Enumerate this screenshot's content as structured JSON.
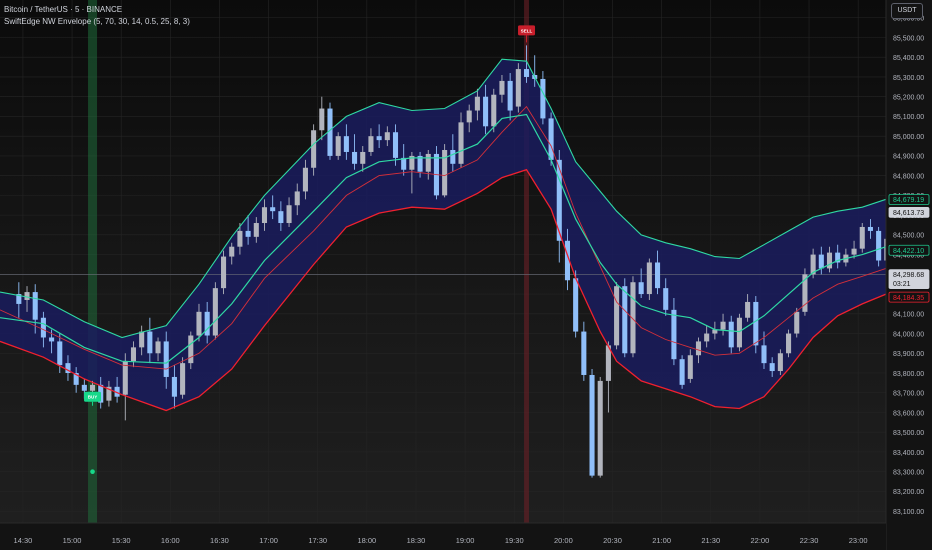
{
  "legend": {
    "symbol": "Bitcoin / TetherUS · 5 · BINANCE",
    "indicator": "SwiftEdge NW Envelope (5, 70, 30, 14, 0.5, 25, 8, 3)"
  },
  "currency_button": "USDT",
  "chart_data": {
    "type": "candlestick",
    "title": "",
    "y_ticks": [
      83100,
      83200,
      83300,
      83400,
      83500,
      83600,
      83700,
      83800,
      83900,
      84000,
      84100,
      84200,
      84300,
      84400,
      84500,
      84600,
      84700,
      84800,
      84900,
      85000,
      85100,
      85200,
      85300,
      85400,
      85500,
      85600
    ],
    "y_tick_labels": [
      "83,100.00",
      "83,200.00",
      "83,300.00",
      "83,400.00",
      "83,500.00",
      "83,600.00",
      "83,700.00",
      "83,800.00",
      "83,900.00",
      "84,000.00",
      "84,100.00",
      "84,200.00",
      "84,300.00",
      "84,400.00",
      "84,500.00",
      "84,600.00",
      "84,700.00",
      "84,800.00",
      "84,900.00",
      "85,000.00",
      "85,100.00",
      "85,200.00",
      "85,300.00",
      "85,400.00",
      "85,500.00",
      "85,600.00"
    ],
    "ylim": [
      83040,
      85690
    ],
    "x_ticks": [
      "14:30",
      "15:00",
      "15:30",
      "16:00",
      "16:30",
      "17:00",
      "17:30",
      "18:00",
      "18:30",
      "19:00",
      "19:30",
      "20:00",
      "20:30",
      "21:00",
      "21:30",
      "22:00",
      "22:30",
      "23:00"
    ],
    "x_tick_positions": [
      0.5,
      6.5,
      12.5,
      18.5,
      24.5,
      30.5,
      36.5,
      42.5,
      48.5,
      54.5,
      60.5,
      66.5,
      72.5,
      78.5,
      84.5,
      90.5,
      96.5,
      102.5
    ],
    "x_range": [
      -2.3,
      105.9
    ],
    "candles": [
      {
        "o": 84200,
        "h": 84260,
        "c": 84150,
        "l": 84080
      },
      {
        "o": 84170,
        "h": 84240,
        "c": 84210,
        "l": 84110
      },
      {
        "o": 84210,
        "h": 84250,
        "c": 84070,
        "l": 84000
      },
      {
        "o": 84080,
        "h": 84110,
        "c": 83980,
        "l": 83930
      },
      {
        "o": 83980,
        "h": 84020,
        "c": 83960,
        "l": 83900
      },
      {
        "o": 83960,
        "h": 84000,
        "c": 83840,
        "l": 83800
      },
      {
        "o": 83850,
        "h": 83890,
        "c": 83800,
        "l": 83760
      },
      {
        "o": 83800,
        "h": 83830,
        "c": 83740,
        "l": 83700
      },
      {
        "o": 83740,
        "h": 83770,
        "c": 83710,
        "l": 83670
      },
      {
        "o": 83710,
        "h": 83760,
        "c": 83740,
        "l": 83690
      },
      {
        "o": 83740,
        "h": 83780,
        "c": 83650,
        "l": 83620
      },
      {
        "o": 83660,
        "h": 83760,
        "c": 83730,
        "l": 83630
      },
      {
        "o": 83730,
        "h": 83780,
        "c": 83680,
        "l": 83650
      },
      {
        "o": 83690,
        "h": 83900,
        "c": 83860,
        "l": 83560
      },
      {
        "o": 83860,
        "h": 83960,
        "c": 83930,
        "l": 83830
      },
      {
        "o": 83930,
        "h": 84040,
        "c": 84010,
        "l": 83890
      },
      {
        "o": 84010,
        "h": 84080,
        "c": 83900,
        "l": 83850
      },
      {
        "o": 83900,
        "h": 83980,
        "c": 83960,
        "l": 83860
      },
      {
        "o": 83960,
        "h": 84010,
        "c": 83780,
        "l": 83720
      },
      {
        "o": 83780,
        "h": 83840,
        "c": 83680,
        "l": 83620
      },
      {
        "o": 83690,
        "h": 83880,
        "c": 83850,
        "l": 83670
      },
      {
        "o": 83850,
        "h": 84010,
        "c": 83990,
        "l": 83820
      },
      {
        "o": 83990,
        "h": 84150,
        "c": 84110,
        "l": 83960
      },
      {
        "o": 84110,
        "h": 84160,
        "c": 83990,
        "l": 83950
      },
      {
        "o": 83990,
        "h": 84260,
        "c": 84230,
        "l": 83970
      },
      {
        "o": 84230,
        "h": 84420,
        "c": 84390,
        "l": 84200
      },
      {
        "o": 84390,
        "h": 84460,
        "c": 84440,
        "l": 84350
      },
      {
        "o": 84440,
        "h": 84560,
        "c": 84520,
        "l": 84400
      },
      {
        "o": 84520,
        "h": 84600,
        "c": 84490,
        "l": 84450
      },
      {
        "o": 84490,
        "h": 84590,
        "c": 84560,
        "l": 84460
      },
      {
        "o": 84560,
        "h": 84680,
        "c": 84640,
        "l": 84520
      },
      {
        "o": 84640,
        "h": 84700,
        "c": 84620,
        "l": 84580
      },
      {
        "o": 84620,
        "h": 84670,
        "c": 84560,
        "l": 84520
      },
      {
        "o": 84560,
        "h": 84690,
        "c": 84650,
        "l": 84540
      },
      {
        "o": 84650,
        "h": 84760,
        "c": 84720,
        "l": 84600
      },
      {
        "o": 84720,
        "h": 84880,
        "c": 84840,
        "l": 84680
      },
      {
        "o": 84840,
        "h": 85060,
        "c": 85030,
        "l": 84800
      },
      {
        "o": 85030,
        "h": 85200,
        "c": 85140,
        "l": 84980
      },
      {
        "o": 85140,
        "h": 85170,
        "c": 84900,
        "l": 84880
      },
      {
        "o": 84900,
        "h": 85020,
        "c": 85000,
        "l": 84880
      },
      {
        "o": 85000,
        "h": 85060,
        "c": 84920,
        "l": 84880
      },
      {
        "o": 84920,
        "h": 85010,
        "c": 84860,
        "l": 84830
      },
      {
        "o": 84860,
        "h": 84950,
        "c": 84920,
        "l": 84820
      },
      {
        "o": 84920,
        "h": 85040,
        "c": 85000,
        "l": 84900
      },
      {
        "o": 85000,
        "h": 85060,
        "c": 84980,
        "l": 84940
      },
      {
        "o": 84980,
        "h": 85050,
        "c": 85020,
        "l": 84950
      },
      {
        "o": 85020,
        "h": 85060,
        "c": 84890,
        "l": 84850
      },
      {
        "o": 84890,
        "h": 84960,
        "c": 84830,
        "l": 84800
      },
      {
        "o": 84830,
        "h": 84920,
        "c": 84900,
        "l": 84710
      },
      {
        "o": 84900,
        "h": 84920,
        "c": 84820,
        "l": 84790
      },
      {
        "o": 84820,
        "h": 84930,
        "c": 84910,
        "l": 84780
      },
      {
        "o": 84910,
        "h": 84950,
        "c": 84700,
        "l": 84680
      },
      {
        "o": 84700,
        "h": 84960,
        "c": 84930,
        "l": 84690
      },
      {
        "o": 84930,
        "h": 85010,
        "c": 84860,
        "l": 84820
      },
      {
        "o": 84860,
        "h": 85120,
        "c": 85070,
        "l": 84840
      },
      {
        "o": 85070,
        "h": 85160,
        "c": 85130,
        "l": 85020
      },
      {
        "o": 85130,
        "h": 85240,
        "c": 85200,
        "l": 85080
      },
      {
        "o": 85200,
        "h": 85260,
        "c": 85050,
        "l": 85010
      },
      {
        "o": 85050,
        "h": 85240,
        "c": 85210,
        "l": 85020
      },
      {
        "o": 85210,
        "h": 85310,
        "c": 85280,
        "l": 85170
      },
      {
        "o": 85280,
        "h": 85320,
        "c": 85130,
        "l": 85080
      },
      {
        "o": 85150,
        "h": 85370,
        "c": 85340,
        "l": 85120
      },
      {
        "o": 85340,
        "h": 85460,
        "c": 85300,
        "l": 85270
      },
      {
        "o": 85310,
        "h": 85410,
        "c": 85290,
        "l": 85250
      },
      {
        "o": 85290,
        "h": 85330,
        "c": 85090,
        "l": 85060
      },
      {
        "o": 85090,
        "h": 85120,
        "c": 84880,
        "l": 84850
      },
      {
        "o": 84880,
        "h": 84930,
        "c": 84470,
        "l": 84360
      },
      {
        "o": 84470,
        "h": 84530,
        "c": 84270,
        "l": 84220
      },
      {
        "o": 84280,
        "h": 84320,
        "c": 84010,
        "l": 83980
      },
      {
        "o": 84010,
        "h": 84060,
        "c": 83790,
        "l": 83760
      },
      {
        "o": 83790,
        "h": 83820,
        "c": 83280,
        "l": 83270
      },
      {
        "o": 83280,
        "h": 83780,
        "c": 83760,
        "l": 83270
      },
      {
        "o": 83760,
        "h": 83960,
        "c": 83940,
        "l": 83600
      },
      {
        "o": 83940,
        "h": 84260,
        "c": 84240,
        "l": 83920
      },
      {
        "o": 84240,
        "h": 84280,
        "c": 83900,
        "l": 83880
      },
      {
        "o": 83900,
        "h": 84290,
        "c": 84260,
        "l": 83880
      },
      {
        "o": 84260,
        "h": 84330,
        "c": 84200,
        "l": 84180
      },
      {
        "o": 84200,
        "h": 84380,
        "c": 84360,
        "l": 84170
      },
      {
        "o": 84360,
        "h": 84420,
        "c": 84230,
        "l": 84200
      },
      {
        "o": 84230,
        "h": 84280,
        "c": 84120,
        "l": 84090
      },
      {
        "o": 84120,
        "h": 84180,
        "c": 83870,
        "l": 83840
      },
      {
        "o": 83870,
        "h": 83890,
        "c": 83740,
        "l": 83720
      },
      {
        "o": 83770,
        "h": 83920,
        "c": 83890,
        "l": 83750
      },
      {
        "o": 83890,
        "h": 83980,
        "c": 83960,
        "l": 83850
      },
      {
        "o": 83960,
        "h": 84040,
        "c": 84000,
        "l": 83930
      },
      {
        "o": 84000,
        "h": 84060,
        "c": 84020,
        "l": 83970
      },
      {
        "o": 84020,
        "h": 84100,
        "c": 84060,
        "l": 83990
      },
      {
        "o": 84060,
        "h": 84090,
        "c": 83930,
        "l": 83900
      },
      {
        "o": 83930,
        "h": 84100,
        "c": 84080,
        "l": 83910
      },
      {
        "o": 84080,
        "h": 84200,
        "c": 84160,
        "l": 84060
      },
      {
        "o": 84160,
        "h": 84190,
        "c": 83940,
        "l": 83900
      },
      {
        "o": 83940,
        "h": 84010,
        "c": 83850,
        "l": 83820
      },
      {
        "o": 83850,
        "h": 83880,
        "c": 83810,
        "l": 83780
      },
      {
        "o": 83810,
        "h": 83920,
        "c": 83900,
        "l": 83790
      },
      {
        "o": 83900,
        "h": 84020,
        "c": 84000,
        "l": 83880
      },
      {
        "o": 84000,
        "h": 84130,
        "c": 84110,
        "l": 83980
      },
      {
        "o": 84110,
        "h": 84330,
        "c": 84300,
        "l": 84090
      },
      {
        "o": 84300,
        "h": 84430,
        "c": 84400,
        "l": 84280
      },
      {
        "o": 84400,
        "h": 84440,
        "c": 84330,
        "l": 84300
      },
      {
        "o": 84330,
        "h": 84440,
        "c": 84410,
        "l": 84310
      },
      {
        "o": 84410,
        "h": 84450,
        "c": 84360,
        "l": 84330
      },
      {
        "o": 84360,
        "h": 84430,
        "c": 84400,
        "l": 84340
      },
      {
        "o": 84400,
        "h": 84470,
        "c": 84430,
        "l": 84380
      },
      {
        "o": 84430,
        "h": 84560,
        "c": 84540,
        "l": 84410
      },
      {
        "o": 84540,
        "h": 84580,
        "c": 84520,
        "l": 84480
      },
      {
        "o": 84520,
        "h": 84540,
        "c": 84370,
        "l": 84340
      },
      {
        "o": 84370,
        "h": 84500,
        "c": 84480,
        "l": 84350
      },
      {
        "o": 84480,
        "h": 84500,
        "c": 84420,
        "l": 84390
      },
      {
        "o": 84420,
        "h": 84440,
        "c": 84330,
        "l": 84300
      },
      {
        "o": 84330,
        "h": 84360,
        "c": 84290,
        "l": 84270
      },
      {
        "o": 84290,
        "h": 84420,
        "c": 84400,
        "l": 84280
      },
      {
        "o": 84400,
        "h": 84440,
        "c": 84350,
        "l": 84330
      },
      {
        "o": 84350,
        "h": 84420,
        "c": 84400,
        "l": 84340
      },
      {
        "o": 84400,
        "h": 84470,
        "c": 84420,
        "l": 84380
      },
      {
        "o": 84410,
        "h": 84640,
        "c": 84613.73,
        "l": 84390
      }
    ],
    "envelope_upper_pts": [
      [
        -2.3,
        84210
      ],
      [
        3,
        84170
      ],
      [
        8,
        84060
      ],
      [
        12.6,
        83980
      ],
      [
        18,
        84040
      ],
      [
        22,
        84250
      ],
      [
        26,
        84490
      ],
      [
        30,
        84700
      ],
      [
        36,
        84960
      ],
      [
        40,
        85100
      ],
      [
        44,
        85170
      ],
      [
        48,
        85130
      ],
      [
        52,
        85140
      ],
      [
        56,
        85230
      ],
      [
        59,
        85390
      ],
      [
        62,
        85380
      ],
      [
        65,
        85140
      ],
      [
        68,
        84870
      ],
      [
        71,
        84720
      ],
      [
        73,
        84620
      ],
      [
        76,
        84500
      ],
      [
        79,
        84460
      ],
      [
        82,
        84430
      ],
      [
        85,
        84390
      ],
      [
        88,
        84380
      ],
      [
        91,
        84450
      ],
      [
        94,
        84520
      ],
      [
        97,
        84590
      ],
      [
        100,
        84620
      ],
      [
        103,
        84640
      ],
      [
        105.9,
        84680
      ]
    ],
    "envelope_lower_pts": [
      [
        -2.3,
        83960
      ],
      [
        3,
        83880
      ],
      [
        8,
        83770
      ],
      [
        12.6,
        83690
      ],
      [
        18,
        83610
      ],
      [
        22,
        83680
      ],
      [
        26,
        83820
      ],
      [
        30,
        84040
      ],
      [
        36,
        84350
      ],
      [
        40,
        84540
      ],
      [
        44,
        84610
      ],
      [
        48,
        84640
      ],
      [
        52,
        84630
      ],
      [
        56,
        84710
      ],
      [
        59,
        84790
      ],
      [
        62,
        84830
      ],
      [
        65,
        84630
      ],
      [
        68,
        84280
      ],
      [
        71,
        84010
      ],
      [
        73,
        83860
      ],
      [
        76,
        83760
      ],
      [
        79,
        83720
      ],
      [
        82,
        83680
      ],
      [
        85,
        83630
      ],
      [
        88,
        83620
      ],
      [
        91,
        83680
      ],
      [
        94,
        83820
      ],
      [
        97,
        83980
      ],
      [
        100,
        84090
      ],
      [
        103,
        84150
      ],
      [
        105.9,
        84200
      ]
    ],
    "mid_green_pts": [
      [
        -2.3,
        84080
      ],
      [
        3,
        84050
      ],
      [
        8,
        83930
      ],
      [
        12.6,
        83860
      ],
      [
        18,
        83850
      ],
      [
        22,
        83980
      ],
      [
        26,
        84150
      ],
      [
        30,
        84370
      ],
      [
        36,
        84620
      ],
      [
        40,
        84790
      ],
      [
        44,
        84870
      ],
      [
        48,
        84890
      ],
      [
        52,
        84890
      ],
      [
        56,
        84960
      ],
      [
        59,
        85090
      ],
      [
        62,
        85110
      ],
      [
        65,
        84880
      ],
      [
        68,
        84580
      ],
      [
        71,
        84360
      ],
      [
        73,
        84250
      ],
      [
        76,
        84140
      ],
      [
        79,
        84100
      ],
      [
        82,
        84080
      ],
      [
        85,
        84020
      ],
      [
        88,
        84010
      ],
      [
        91,
        84090
      ],
      [
        94,
        84200
      ],
      [
        97,
        84310
      ],
      [
        100,
        84370
      ],
      [
        103,
        84400
      ],
      [
        105.9,
        84440
      ]
    ],
    "mid_red_pts": [
      [
        -2.3,
        84120
      ],
      [
        3,
        84020
      ],
      [
        8,
        83920
      ],
      [
        12.6,
        83840
      ],
      [
        18,
        83820
      ],
      [
        22,
        83900
      ],
      [
        26,
        84050
      ],
      [
        30,
        84280
      ],
      [
        36,
        84520
      ],
      [
        40,
        84700
      ],
      [
        44,
        84800
      ],
      [
        48,
        84820
      ],
      [
        52,
        84800
      ],
      [
        56,
        84880
      ],
      [
        59,
        85020
      ],
      [
        62,
        85150
      ],
      [
        65,
        84950
      ],
      [
        68,
        84610
      ],
      [
        71,
        84340
      ],
      [
        73,
        84160
      ],
      [
        76,
        84030
      ],
      [
        79,
        83970
      ],
      [
        82,
        83930
      ],
      [
        85,
        83890
      ],
      [
        88,
        83900
      ],
      [
        91,
        83980
      ],
      [
        94,
        84080
      ],
      [
        97,
        84180
      ],
      [
        100,
        84250
      ],
      [
        103,
        84290
      ],
      [
        105.9,
        84330
      ]
    ],
    "buy_signal": {
      "index": 9,
      "label": "BUY",
      "price": 83700
    },
    "sell_signal": {
      "index": 62,
      "label": "SELL",
      "price": 85460
    },
    "signal_marker": {
      "index": 9,
      "price": 83300
    },
    "colors": {
      "bull": "#b2b5be",
      "bear": "#90bff9",
      "envelope_fill": "#1a1c5e",
      "upper": "#2fd9a4",
      "lower": "#f0202f",
      "mid_green": "#2fd9a4",
      "mid_red": "#d32f3a",
      "buy_band": "#1f6b3a",
      "sell_band": "#6b1f27",
      "buy_tag": "#17d98a",
      "sell_tag": "#c81e2b",
      "grid": "#252525",
      "axis_text": "#b2b5be"
    },
    "crosshair_price": 84298.68,
    "price_labels": [
      {
        "value": 84679.19,
        "text": "84,679.19",
        "color": "#1fc98e",
        "style": "outline"
      },
      {
        "value": 84613.73,
        "text": "84,613.73",
        "color": "#d1d4dc",
        "style": "white"
      },
      {
        "value": 84422.1,
        "text": "84,422.10",
        "color": "#1fc98e",
        "style": "outline"
      },
      {
        "value": 84298.68,
        "text": "84,298.68",
        "sub": "03:21",
        "color": "#d1d4dc",
        "style": "white"
      },
      {
        "value": 84184.35,
        "text": "84,184.35",
        "color": "#f0202f",
        "style": "outline"
      }
    ]
  }
}
